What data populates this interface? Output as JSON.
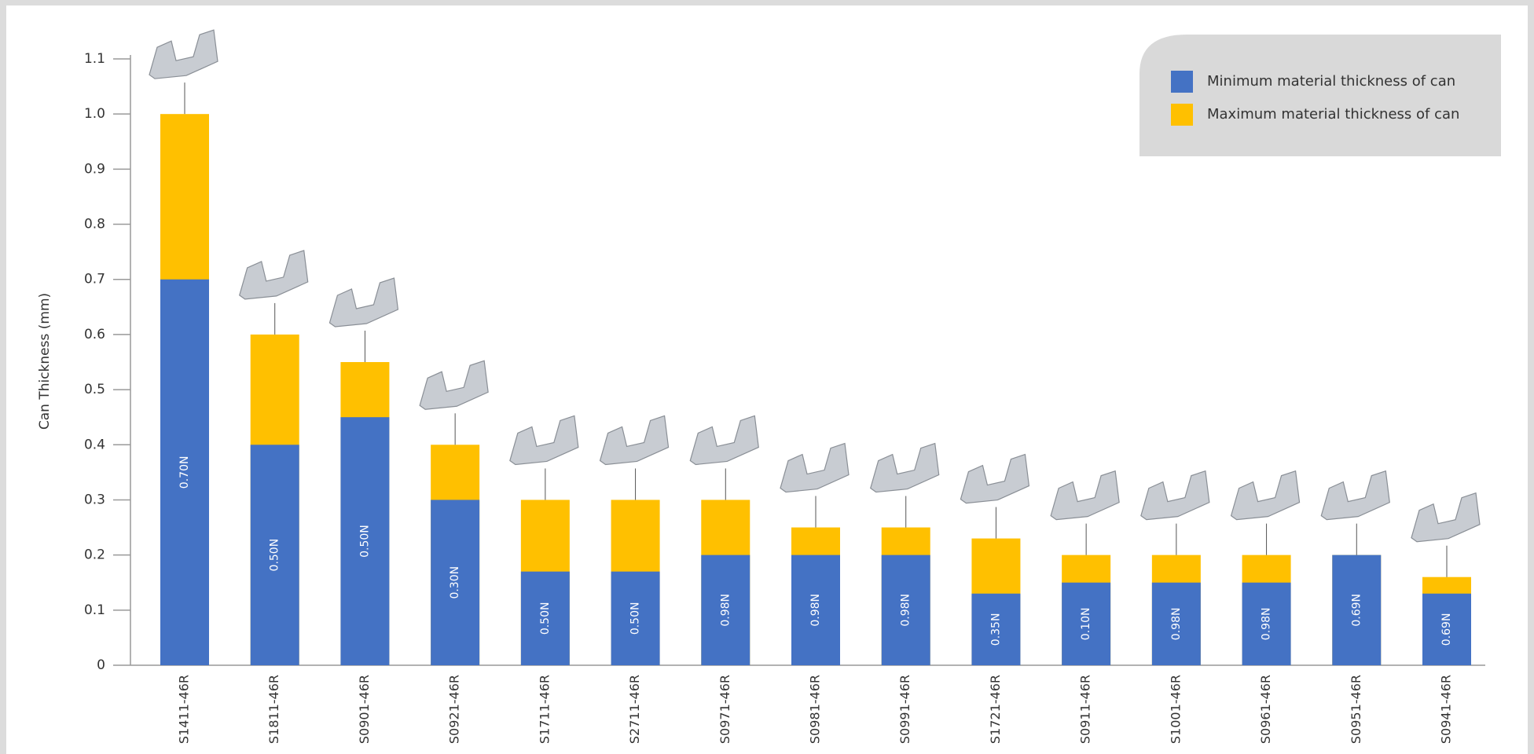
{
  "chart_data": {
    "type": "bar",
    "y_label": "Can Thickness (mm)",
    "categories": [
      "S1411-46R",
      "S1811-46R",
      "S0901-46R",
      "S0921-46R",
      "S1711-46R",
      "S2711-46R",
      "S0971-46R",
      "S0981-46R",
      "S0991-46R",
      "S1721-46R",
      "S0911-46R",
      "S1001-46R",
      "S0961-46R",
      "S0951-46R",
      "S0941-46R"
    ],
    "series": [
      {
        "name": "Minimum material thickness of can",
        "color": "#4472c4",
        "values": [
          0.7,
          0.4,
          0.45,
          0.3,
          0.17,
          0.17,
          0.2,
          0.2,
          0.2,
          0.13,
          0.15,
          0.15,
          0.15,
          0.2,
          0.13
        ]
      },
      {
        "name": "Maximum material thickness of can",
        "color": "#ffc000",
        "values": [
          1.0,
          0.6,
          0.55,
          0.4,
          0.3,
          0.3,
          0.3,
          0.25,
          0.25,
          0.23,
          0.2,
          0.2,
          0.2,
          0.2,
          0.16
        ]
      }
    ],
    "force_labels": [
      "0.70N",
      "0.50N",
      "0.50N",
      "0.30N",
      "0.50N",
      "0.50N",
      "0.98N",
      "0.98N",
      "0.98N",
      "0.35N",
      "0.10N",
      "0.98N",
      "0.98N",
      "0.69N",
      "0.69N"
    ],
    "ylim": [
      0,
      1.1
    ],
    "yticks": [
      0,
      0.1,
      0.2,
      0.3,
      0.4,
      0.5,
      0.6,
      0.7,
      0.8,
      0.9,
      {
        "value": 1,
        "label": "1.0"
      },
      1.1
    ]
  }
}
